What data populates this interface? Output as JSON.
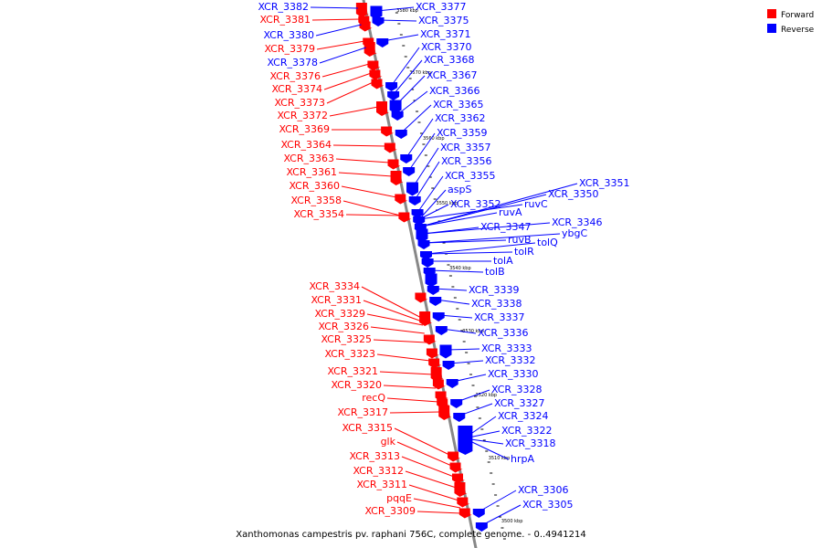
{
  "colors": {
    "forward": "#ff0000",
    "reverse": "#0000ff",
    "backbone": "#888888"
  },
  "legend": {
    "forward": "Forward",
    "reverse": "Reverse"
  },
  "caption": "Xanthomonas campestris pv. raphani 756C, complete genome. - 0..4941214",
  "ticks": [
    "3580 kbp",
    "3570 kbp",
    "3560 kbp",
    "3550 kbp",
    "3540 kbp",
    "3530 kbp",
    "3520 kbp",
    "3510 kbp",
    "3500 kbp"
  ],
  "forward_genes": [
    "XCR_3382",
    "XCR_3381",
    "XCR_3380",
    "XCR_3379",
    "XCR_3378",
    "XCR_3376",
    "XCR_3374",
    "XCR_3373",
    "XCR_3372",
    "XCR_3369",
    "XCR_3364",
    "XCR_3363",
    "XCR_3361",
    "XCR_3360",
    "XCR_3358",
    "XCR_3354",
    "XCR_3334",
    "XCR_3331",
    "XCR_3329",
    "XCR_3326",
    "XCR_3325",
    "XCR_3323",
    "XCR_3321",
    "XCR_3320",
    "recQ",
    "XCR_3317",
    "XCR_3315",
    "glk",
    "XCR_3313",
    "XCR_3312",
    "XCR_3311",
    "pqqE",
    "XCR_3309"
  ],
  "reverse_genes": [
    "XCR_3377",
    "XCR_3375",
    "XCR_3371",
    "XCR_3370",
    "XCR_3368",
    "XCR_3367",
    "XCR_3366",
    "XCR_3365",
    "XCR_3362",
    "XCR_3359",
    "XCR_3357",
    "XCR_3356",
    "XCR_3355",
    "aspS",
    "XCR_3352",
    "ruvC",
    "XCR_3351",
    "XCR_3350",
    "ruvA",
    "XCR_3347",
    "XCR_3346",
    "ybgC",
    "ruvB",
    "tolQ",
    "tolR",
    "tolA",
    "tolB",
    "XCR_3339",
    "XCR_3338",
    "XCR_3337",
    "XCR_3336",
    "XCR_3333",
    "XCR_3332",
    "XCR_3330",
    "XCR_3328",
    "XCR_3327",
    "XCR_3324",
    "XCR_3322",
    "XCR_3318",
    "hrpA",
    "XCR_3306",
    "XCR_3305"
  ],
  "forward_label_colors": [
    "blue",
    "red",
    "blue",
    "red",
    "blue",
    "red",
    "red",
    "red",
    "red",
    "red",
    "red",
    "red",
    "red",
    "red",
    "red",
    "red",
    "red",
    "red",
    "red",
    "red",
    "red",
    "red",
    "red",
    "red",
    "red",
    "red",
    "red",
    "red",
    "red",
    "red",
    "red",
    "red",
    "red"
  ]
}
